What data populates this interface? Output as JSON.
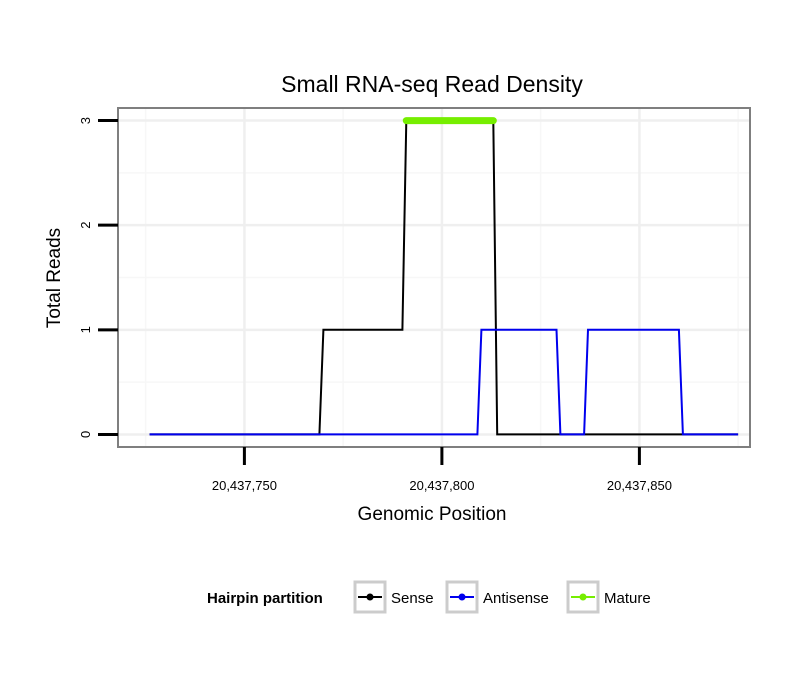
{
  "chart_data": {
    "type": "line",
    "title": "Small RNA-seq Read Density",
    "xlabel": "Genomic Position",
    "ylabel": "Total Reads",
    "xlim": [
      20437718,
      20437878
    ],
    "ylim": [
      -0.12,
      3.12
    ],
    "x_ticks": [
      {
        "value": 20437750,
        "label": "20,437,750"
      },
      {
        "value": 20437800,
        "label": "20,437,800"
      },
      {
        "value": 20437850,
        "label": "20,437,850"
      }
    ],
    "y_ticks": [
      {
        "value": 0,
        "label": "0"
      },
      {
        "value": 1,
        "label": "1"
      },
      {
        "value": 2,
        "label": "2"
      },
      {
        "value": 3,
        "label": "3"
      }
    ],
    "grid": true,
    "series": [
      {
        "name": "Sense",
        "color": "#000000",
        "x": [
          20437726,
          20437769,
          20437770,
          20437790,
          20437791,
          20437813,
          20437814,
          20437875
        ],
        "y": [
          0,
          0,
          1,
          1,
          3,
          3,
          0,
          0
        ]
      },
      {
        "name": "Antisense",
        "color": "#0000ee",
        "x": [
          20437726,
          20437809,
          20437810,
          20437829,
          20437830,
          20437836,
          20437837,
          20437860,
          20437861,
          20437875
        ],
        "y": [
          0,
          0,
          1,
          1,
          0,
          0,
          1,
          1,
          0,
          0
        ]
      },
      {
        "name": "Mature",
        "color": "#76ee00",
        "x": [
          20437791,
          20437813
        ],
        "y": [
          3,
          3
        ]
      }
    ],
    "legend": {
      "title": "Hairpin partition",
      "position": "bottom",
      "entries": [
        "Sense",
        "Antisense",
        "Mature"
      ]
    }
  }
}
